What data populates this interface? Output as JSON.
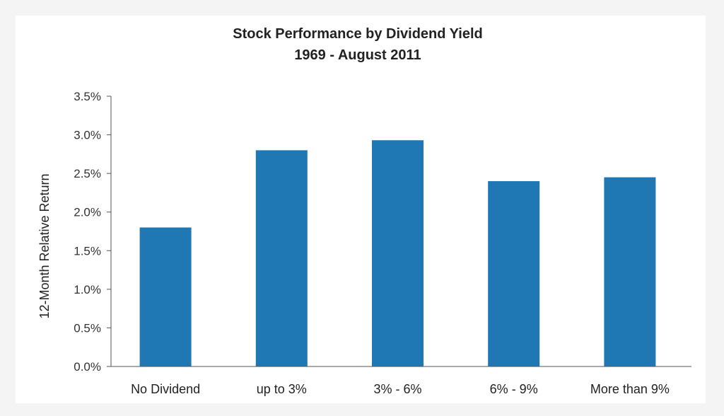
{
  "chart_data": {
    "type": "bar",
    "title": "Stock Performance by Dividend Yield",
    "subtitle": "1969 - August 2011",
    "ylabel": "12-Month Relative Return",
    "xlabel": "",
    "categories": [
      "No Dividend",
      "up to 3%",
      "3% - 6%",
      "6% - 9%",
      "More than 9%"
    ],
    "values": [
      1.8,
      2.8,
      2.93,
      2.4,
      2.45
    ],
    "ylim": [
      0,
      3.5
    ],
    "yticks": [
      "0.0%",
      "0.5%",
      "1.0%",
      "1.5%",
      "2.0%",
      "2.5%",
      "3.0%",
      "3.5%"
    ],
    "grid": false,
    "legend": "none",
    "bar_color": "#1f77b4"
  }
}
